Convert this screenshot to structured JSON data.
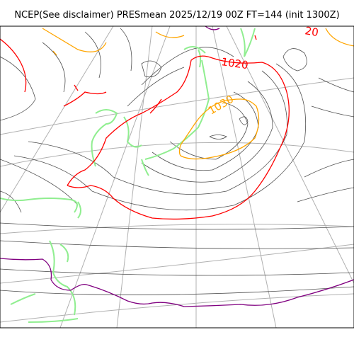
{
  "title": "NCEP(See disclaimer) PRESmean 2025/12/19 00Z FT=144 (init 1300Z)",
  "colors": {
    "isobar": "#505050",
    "isobar_1020": "#ff0000",
    "isobar_1030": "#ffa500",
    "isobar_1000": "#800080",
    "coastline": "#90ee90",
    "graticule": "#b0b0b0",
    "frame": "#000000"
  },
  "contour_labels": [
    {
      "text": "1020",
      "color": "#ff0000"
    },
    {
      "text": "1030",
      "color": "#ffa500"
    },
    {
      "text": "20",
      "color": "#ff0000"
    }
  ]
}
